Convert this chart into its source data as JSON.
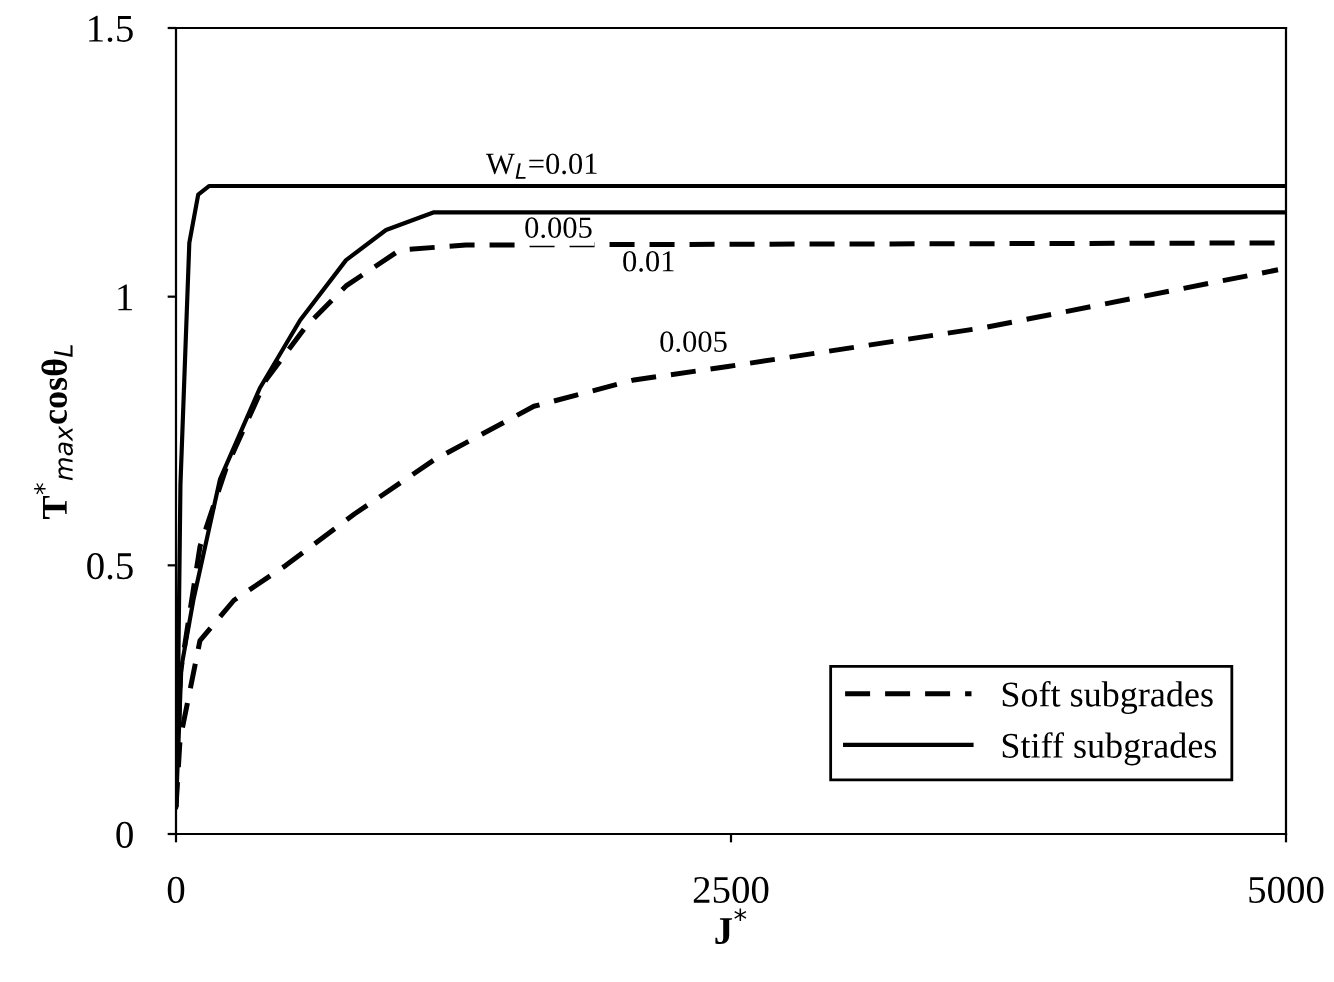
{
  "chart_data": {
    "type": "line",
    "xlabel": "J$^{*}$",
    "ylabel": "T$^{*}$$_{max}$cosθ$_{L}$",
    "xlim": [
      0,
      5000
    ],
    "ylim": [
      0,
      1.5
    ],
    "xticks": [
      0,
      2500,
      5000
    ],
    "yticks": [
      0,
      0.5,
      1,
      1.5
    ],
    "grid": false,
    "legend": "bottom right",
    "marker": "none",
    "series": [
      {
        "name": "Soft subgrades",
        "color": "#000000",
        "line_style": "dashed",
        "x": [
          0,
          20,
          108,
          225,
          405,
          586,
          766,
          1009,
          1306,
          2000,
          3000,
          4000,
          5000
        ],
        "values": [
          0.05,
          0.3,
          0.535,
          0.68,
          0.845,
          0.945,
          1.02,
          1.087,
          1.096,
          1.097,
          1.098,
          1.099,
          1.1
        ]
      },
      {
        "color": "#000000",
        "line_style": "dashed",
        "x": [
          0,
          18,
          108,
          261,
          495,
          802,
          1162,
          1612,
          2063,
          2486,
          3649,
          4964
        ],
        "values": [
          0.05,
          0.175,
          0.36,
          0.435,
          0.5,
          0.595,
          0.696,
          0.796,
          0.845,
          0.87,
          0.943,
          1.05
        ]
      },
      {
        "name": "Stiff subgrades",
        "color": "#000000",
        "line_style": "solid",
        "x": [
          0,
          10,
          20,
          60,
          100,
          150,
          5000
        ],
        "values": [
          0.05,
          0.3,
          0.65,
          1.1,
          1.19,
          1.206,
          1.206
        ]
      },
      {
        "color": "#000000",
        "line_style": "solid",
        "x": [
          0,
          24,
          78,
          198,
          378,
          559,
          766,
          946,
          1162,
          5000
        ],
        "values": [
          0.05,
          0.31,
          0.435,
          0.66,
          0.83,
          0.956,
          1.068,
          1.124,
          1.157,
          1.157
        ]
      }
    ],
    "annotations": [
      {
        "text": "W$_{L}$=0.01",
        "x": 1396,
        "y": 1.206
      },
      {
        "text": "0.005",
        "x": 1568,
        "y": 1.157
      },
      {
        "text": "0.01",
        "x": 2009,
        "y": 1.097
      },
      {
        "text": "0.005",
        "x": 2486,
        "y": 0.87
      }
    ]
  }
}
